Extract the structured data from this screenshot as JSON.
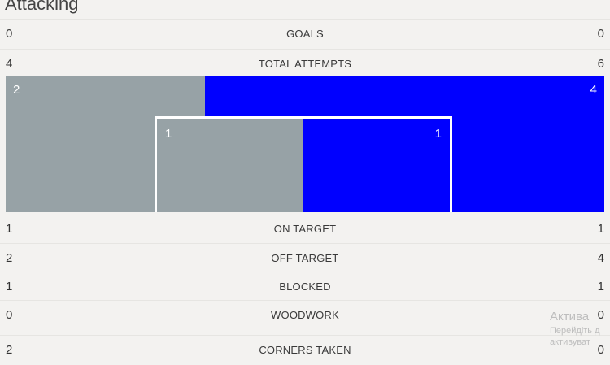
{
  "section_title": "Attacking",
  "stats": {
    "goals": {
      "label": "GOALS",
      "home": "0",
      "away": "0"
    },
    "total_attempts": {
      "label": "TOTAL ATTEMPTS",
      "home": "4",
      "away": "6"
    },
    "on_target": {
      "label": "ON TARGET",
      "home": "1",
      "away": "1"
    },
    "off_target": {
      "label": "OFF TARGET",
      "home": "2",
      "away": "4"
    },
    "blocked": {
      "label": "BLOCKED",
      "home": "1",
      "away": "1"
    },
    "woodwork": {
      "label": "WOODWORK",
      "home": "0",
      "away": "0"
    },
    "corners_taken": {
      "label": "CORNERS TAKEN",
      "home": "2",
      "away": "0"
    }
  },
  "goal_visual": {
    "outside_box": {
      "home": "2",
      "away": "4",
      "home_share": 0.333
    },
    "inside_box": {
      "home": "1",
      "away": "1",
      "home_share": 0.5
    },
    "colors": {
      "home": "#97a2a6",
      "away": "#0000ff",
      "frame": "#ffffff"
    }
  },
  "watermark": {
    "line1": "Актива",
    "line2": "Перейдіть д",
    "line3": "активуват"
  }
}
